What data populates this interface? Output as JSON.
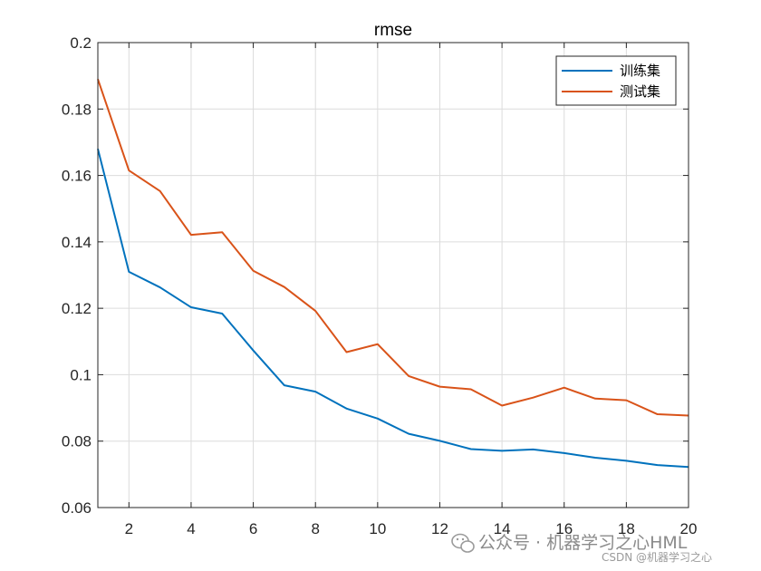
{
  "chart_data": {
    "type": "line",
    "title": "rmse",
    "xlabel": "",
    "ylabel": "",
    "xlim": [
      1,
      20
    ],
    "ylim": [
      0.06,
      0.2
    ],
    "xticks": [
      "2",
      "4",
      "6",
      "8",
      "10",
      "12",
      "14",
      "16",
      "18",
      "20"
    ],
    "yticks": [
      "0.06",
      "0.08",
      "0.1",
      "0.12",
      "0.14",
      "0.16",
      "0.18",
      "0.2"
    ],
    "grid": true,
    "legend_position": "top-right",
    "x": [
      1,
      2,
      3,
      4,
      5,
      6,
      7,
      8,
      9,
      10,
      11,
      12,
      13,
      14,
      15,
      16,
      17,
      18,
      19,
      20
    ],
    "series": [
      {
        "name": "训练集",
        "color": "#0072BD",
        "values": [
          0.168,
          0.131,
          0.1263,
          0.1203,
          0.1184,
          0.1073,
          0.0968,
          0.0949,
          0.0898,
          0.0868,
          0.0822,
          0.0801,
          0.0776,
          0.0771,
          0.0775,
          0.0764,
          0.075,
          0.0741,
          0.0728,
          0.0722
        ]
      },
      {
        "name": "测试集",
        "color": "#D95319",
        "values": [
          0.189,
          0.1615,
          0.1553,
          0.1421,
          0.1429,
          0.1313,
          0.1264,
          0.1192,
          0.1068,
          0.1092,
          0.0996,
          0.0964,
          0.0956,
          0.0907,
          0.0931,
          0.0961,
          0.0928,
          0.0923,
          0.0881,
          0.0877
        ]
      }
    ]
  },
  "watermark": {
    "main": "公众号 · 机器学习之心HML",
    "sub": "CSDN @机器学习之心"
  }
}
